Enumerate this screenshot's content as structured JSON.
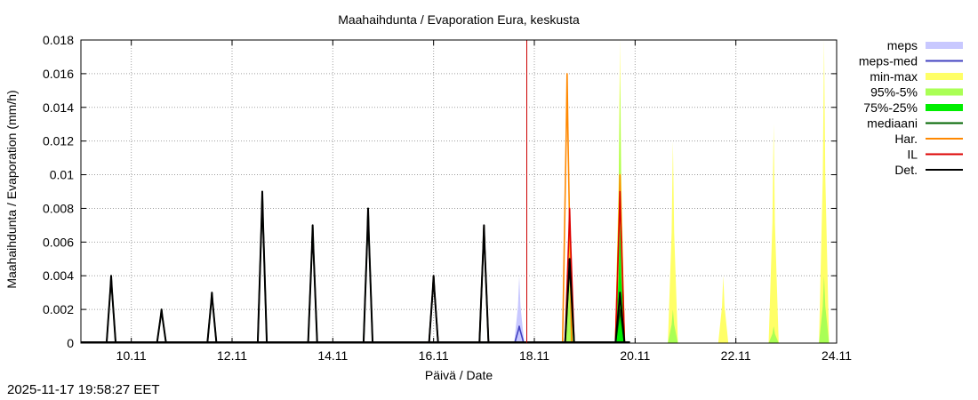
{
  "timestamp": "2025-11-17 19:58:27 EET",
  "chart_data": {
    "type": "area",
    "title": "Maahaihdunta / Evaporation  Eura, keskusta",
    "xlabel": "Päivä / Date",
    "ylabel": "Maahaihdunta / Evaporation (mm/h)",
    "xlim": [
      9.0,
      24.0
    ],
    "ylim": [
      0,
      0.018
    ],
    "grid": true,
    "legend_position": "top-right-outside",
    "x_ticks": [
      {
        "value": 10,
        "label": "10.11"
      },
      {
        "value": 12,
        "label": "12.11"
      },
      {
        "value": 14,
        "label": "14.11"
      },
      {
        "value": 16,
        "label": "16.11"
      },
      {
        "value": 18,
        "label": "18.11"
      },
      {
        "value": 20,
        "label": "20.11"
      },
      {
        "value": 22,
        "label": "22.11"
      },
      {
        "value": 24,
        "label": "24.11"
      }
    ],
    "y_ticks": [
      {
        "value": 0,
        "label": "0"
      },
      {
        "value": 0.002,
        "label": "0.002"
      },
      {
        "value": 0.004,
        "label": "0.004"
      },
      {
        "value": 0.006,
        "label": "0.006"
      },
      {
        "value": 0.008,
        "label": "0.008"
      },
      {
        "value": 0.01,
        "label": "0.01"
      },
      {
        "value": 0.012,
        "label": "0.012"
      },
      {
        "value": 0.014,
        "label": "0.014"
      },
      {
        "value": 0.016,
        "label": "0.016"
      },
      {
        "value": 0.018,
        "label": "0.018"
      }
    ],
    "forecast_start": 17.85,
    "forecast_line_color": "#cc0000",
    "legend": [
      {
        "label": "meps",
        "color": "#c8c8ff",
        "style": "band"
      },
      {
        "label": "meps-med",
        "color": "#4040c0",
        "style": "line"
      },
      {
        "label": "min-max",
        "color": "#ffff66",
        "style": "band"
      },
      {
        "label": "95%-5%",
        "color": "#aaff55",
        "style": "band"
      },
      {
        "label": "75%-25%",
        "color": "#00ee00",
        "style": "band"
      },
      {
        "label": "mediaani",
        "color": "#006400",
        "style": "line"
      },
      {
        "label": "Har.",
        "color": "#ff8800",
        "style": "line"
      },
      {
        "label": "IL",
        "color": "#dd0000",
        "style": "line"
      },
      {
        "label": "Det.",
        "color": "#000000",
        "style": "line"
      }
    ],
    "peak_half_width": 0.1,
    "series": [
      {
        "name": "meps",
        "kind": "band",
        "color": "#c8c8ff",
        "peaks": [
          [
            17.7,
            0.004
          ]
        ]
      },
      {
        "name": "min-max",
        "kind": "band",
        "color": "#ffff66",
        "peaks": [
          [
            18.7,
            0.009
          ],
          [
            19.7,
            0.018
          ],
          [
            20.75,
            0.012
          ],
          [
            21.75,
            0.004
          ],
          [
            22.75,
            0.013
          ],
          [
            23.75,
            0.018
          ]
        ]
      },
      {
        "name": "95%-5%",
        "kind": "band",
        "color": "#aaff55",
        "peaks": [
          [
            18.7,
            0.004
          ],
          [
            19.7,
            0.016
          ],
          [
            20.75,
            0.002
          ],
          [
            22.75,
            0.001
          ],
          [
            23.75,
            0.004
          ]
        ]
      },
      {
        "name": "75%-25%",
        "kind": "band",
        "color": "#00ee00",
        "peaks": [
          [
            19.7,
            0.007
          ]
        ]
      },
      {
        "name": "Har.",
        "kind": "line",
        "color": "#ff8800",
        "peaks": [
          [
            18.65,
            0.016
          ],
          [
            19.7,
            0.01
          ]
        ]
      },
      {
        "name": "IL",
        "kind": "line",
        "color": "#dd0000",
        "peaks": [
          [
            16.0,
            0.004
          ],
          [
            17.0,
            0.007
          ],
          [
            18.7,
            0.008
          ],
          [
            19.7,
            0.009
          ]
        ]
      },
      {
        "name": "meps-med",
        "kind": "line",
        "color": "#4040c0",
        "peaks": [
          [
            17.7,
            0.001
          ]
        ]
      },
      {
        "name": "mediaani",
        "kind": "line",
        "color": "#006400",
        "peaks": [
          [
            9.6,
            0.004
          ],
          [
            10.6,
            0.002
          ],
          [
            11.6,
            0.003
          ],
          [
            12.6,
            0.009
          ],
          [
            13.6,
            0.007
          ],
          [
            14.7,
            0.008
          ],
          [
            16.0,
            0.004
          ],
          [
            17.0,
            0.007
          ],
          [
            18.7,
            0.005
          ],
          [
            19.7,
            0.002
          ]
        ]
      },
      {
        "name": "Det.",
        "kind": "line",
        "color": "#000000",
        "peaks": [
          [
            9.6,
            0.004
          ],
          [
            10.6,
            0.002
          ],
          [
            11.6,
            0.003
          ],
          [
            12.6,
            0.009
          ],
          [
            13.6,
            0.007
          ],
          [
            14.7,
            0.008
          ],
          [
            16.0,
            0.004
          ],
          [
            17.0,
            0.007
          ],
          [
            18.7,
            0.005
          ],
          [
            19.7,
            0.003
          ]
        ]
      }
    ]
  }
}
